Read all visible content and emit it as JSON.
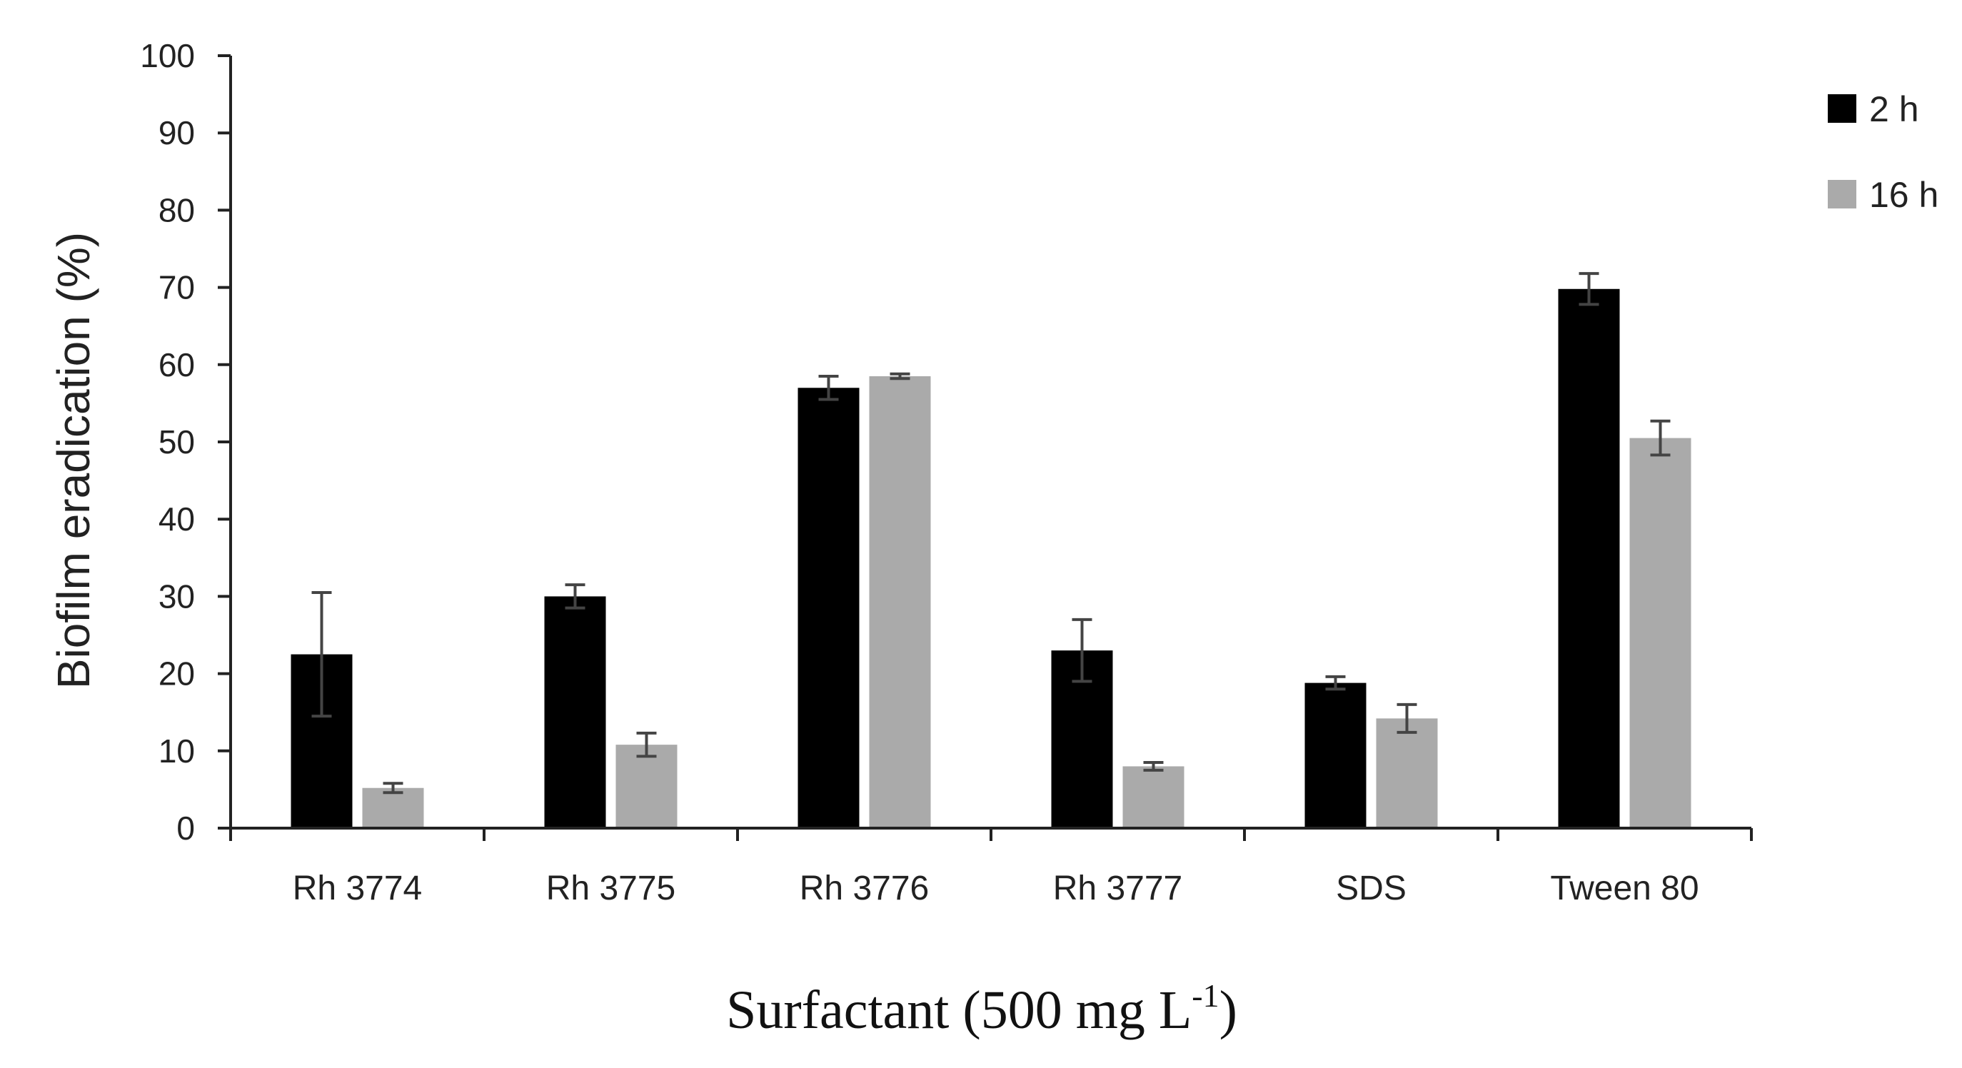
{
  "chart_data": {
    "type": "bar",
    "title": "",
    "xlabel": "Surfactant (500 mg L",
    "xlabel_superscript": "-1",
    "xlabel_suffix": ")",
    "ylabel": "Biofilm eradication (%)",
    "ylim": [
      0,
      100
    ],
    "yticks": [
      0,
      10,
      20,
      30,
      40,
      50,
      60,
      70,
      80,
      90,
      100
    ],
    "grid": false,
    "legend_position": "top-right",
    "categories": [
      "Rh 3774",
      "Rh 3775",
      "Rh 3776",
      "Rh 3777",
      "SDS",
      "Tween 80"
    ],
    "series": [
      {
        "name": "2 h",
        "color": "#000000",
        "values": [
          22.5,
          30.0,
          57.0,
          23.0,
          18.8,
          69.8
        ],
        "errors": [
          8.0,
          1.5,
          1.5,
          4.0,
          0.8,
          2.0
        ]
      },
      {
        "name": "16 h",
        "color": "#aaaaaa",
        "values": [
          5.2,
          10.8,
          58.5,
          8.0,
          14.2,
          50.5
        ],
        "errors": [
          0.6,
          1.5,
          0.3,
          0.5,
          1.8,
          2.2
        ]
      }
    ]
  }
}
